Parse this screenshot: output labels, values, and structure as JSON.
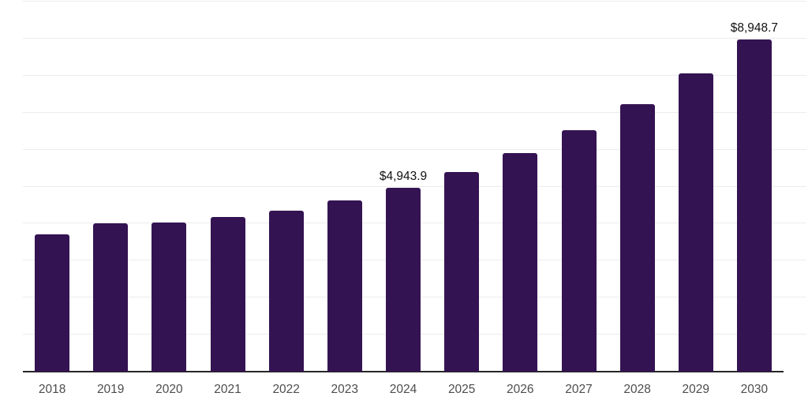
{
  "chart_data": {
    "type": "bar",
    "title": "",
    "xlabel": "",
    "ylabel": "",
    "categories": [
      "2018",
      "2019",
      "2020",
      "2021",
      "2022",
      "2023",
      "2024",
      "2025",
      "2026",
      "2027",
      "2028",
      "2029",
      "2030"
    ],
    "values": [
      3700,
      3980,
      4020,
      4150,
      4330,
      4610,
      4943.9,
      5370,
      5880,
      6500,
      7210,
      8030,
      8948.7
    ],
    "data_labels": [
      {
        "category": "2024",
        "text": "$4,943.9"
      },
      {
        "category": "2030",
        "text": "$8,948.7"
      }
    ],
    "ylim": [
      0,
      10000
    ],
    "grid_interval": 1000,
    "grid": true,
    "legend": false,
    "y_axis_labels_visible": false,
    "colors": {
      "bar": "#341352",
      "axis_line": "#262626",
      "gridline": "#ececec",
      "tick_label": "#4d4d4d",
      "data_label": "#111111",
      "background": "#ffffff"
    }
  }
}
